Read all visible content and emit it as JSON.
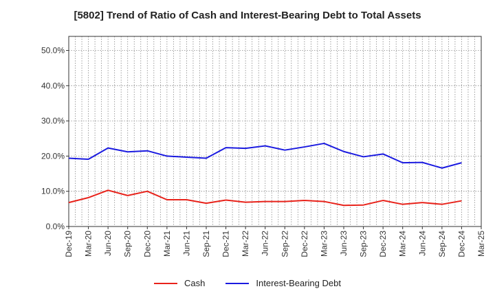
{
  "chart_data": {
    "type": "line",
    "title": "[5802]  Trend of Ratio of Cash and Interest-Bearing Debt to Total Assets",
    "xlabel": "",
    "ylabel": "",
    "ylim": [
      0,
      0.54
    ],
    "yticks": [
      {
        "value": 0.0,
        "label": "0.0%"
      },
      {
        "value": 0.1,
        "label": "10.0%"
      },
      {
        "value": 0.2,
        "label": "20.0%"
      },
      {
        "value": 0.3,
        "label": "30.0%"
      },
      {
        "value": 0.4,
        "label": "40.0%"
      },
      {
        "value": 0.5,
        "label": "50.0%"
      }
    ],
    "x_ticks": [
      "Dec-19",
      "Mar-20",
      "Jun-20",
      "Sep-20",
      "Dec-20",
      "Mar-21",
      "Jun-21",
      "Sep-21",
      "Dec-21",
      "Mar-22",
      "Jun-22",
      "Sep-22",
      "Dec-22",
      "Mar-23",
      "Jun-23",
      "Sep-23",
      "Dec-23",
      "Mar-24",
      "Jun-24",
      "Sep-24",
      "Dec-24",
      "Mar-25"
    ],
    "categories": [
      "Dec-19",
      "Mar-20",
      "Jun-20",
      "Sep-20",
      "Dec-20",
      "Mar-21",
      "Jun-21",
      "Sep-21",
      "Dec-21",
      "Mar-22",
      "Jun-22",
      "Sep-22",
      "Dec-22",
      "Mar-23",
      "Jun-23",
      "Sep-23",
      "Dec-23",
      "Mar-24",
      "Jun-24",
      "Sep-24",
      "Dec-24"
    ],
    "series": [
      {
        "name": "Cash",
        "color": "#e8221a",
        "values": [
          0.068,
          0.082,
          0.103,
          0.088,
          0.1,
          0.076,
          0.076,
          0.066,
          0.075,
          0.069,
          0.071,
          0.071,
          0.074,
          0.071,
          0.06,
          0.061,
          0.074,
          0.063,
          0.068,
          0.063,
          0.073
        ]
      },
      {
        "name": "Interest-Bearing Debt",
        "color": "#1a1ae0",
        "values": [
          0.194,
          0.191,
          0.223,
          0.212,
          0.215,
          0.2,
          0.197,
          0.194,
          0.224,
          0.222,
          0.229,
          0.217,
          0.226,
          0.236,
          0.213,
          0.198,
          0.206,
          0.181,
          0.182,
          0.166,
          0.181
        ]
      }
    ],
    "grid": true,
    "legend_position": "bottom-center"
  }
}
